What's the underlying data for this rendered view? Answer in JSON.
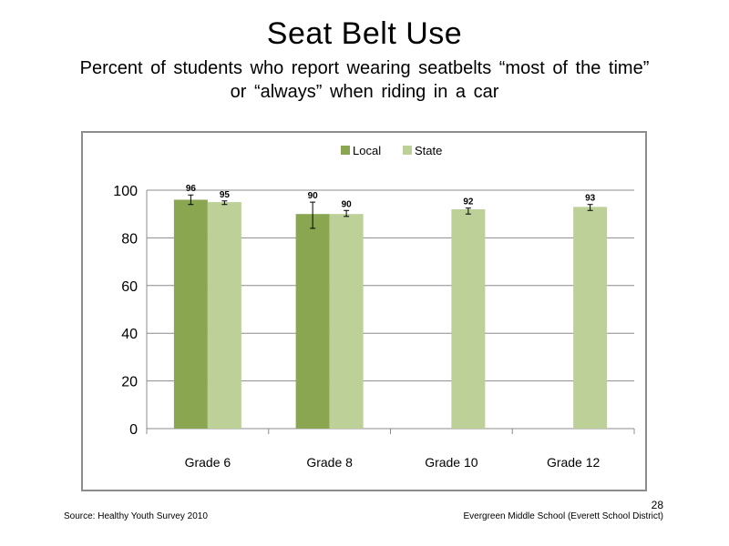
{
  "slide": {
    "title": "Seat Belt Use",
    "subtitle_line1": "Percent of students who report wearing seatbelts “most of the time”",
    "subtitle_line2": "or “always” when riding in a car",
    "source": "Source: Healthy Youth Survey 2010",
    "school": "Evergreen Middle School (Everett School District)",
    "page_number": "28"
  },
  "chart_data": {
    "type": "bar",
    "title": "",
    "xlabel": "",
    "ylabel": "",
    "ylim": [
      0,
      100
    ],
    "yticks": [
      0,
      20,
      40,
      60,
      80,
      100
    ],
    "grid": true,
    "legend_position": "top",
    "categories": [
      "Grade 6",
      "Grade 8",
      "Grade 10",
      "Grade 12"
    ],
    "series": [
      {
        "name": "Local",
        "color": "#8aa650",
        "values": [
          96,
          90,
          null,
          null
        ],
        "value_labels": [
          "96",
          "90",
          "",
          ""
        ],
        "error": [
          [
            94,
            98
          ],
          [
            84,
            95
          ],
          null,
          null
        ]
      },
      {
        "name": "State",
        "color": "#bcd098",
        "values": [
          95,
          90,
          92,
          93
        ],
        "value_labels": [
          "95",
          "90",
          "92",
          "93"
        ],
        "error": [
          [
            94,
            95.5
          ],
          [
            89,
            91.5
          ],
          [
            90,
            92.5
          ],
          [
            91.5,
            94
          ]
        ]
      }
    ]
  }
}
